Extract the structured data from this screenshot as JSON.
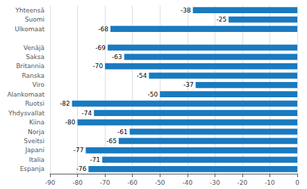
{
  "chart_data": {
    "type": "bar",
    "orientation": "horizontal",
    "categories": [
      "Yhteensä",
      "Suomi",
      "Ulkomaat",
      null,
      "Venäjä",
      "Saksa",
      "Britannia",
      "Ranska",
      "Viro",
      "Alankomaat",
      "Ruotsi",
      "Yhdysvallat",
      "Kiina",
      "Norja",
      "Sveitsi",
      "Japani",
      "Italia",
      "Espanja"
    ],
    "values": [
      -38,
      -25,
      -68,
      null,
      -69,
      -63,
      -70,
      -54,
      -37,
      -50,
      -82,
      -74,
      -80,
      -61,
      -65,
      -77,
      -71,
      -76
    ],
    "color": "#1a7abf",
    "xlim": [
      -90,
      0
    ],
    "xticks": [
      -90,
      -80,
      -70,
      -60,
      -50,
      -40,
      -30,
      -20,
      -10,
      0
    ],
    "grid": true,
    "data_labels": true
  }
}
